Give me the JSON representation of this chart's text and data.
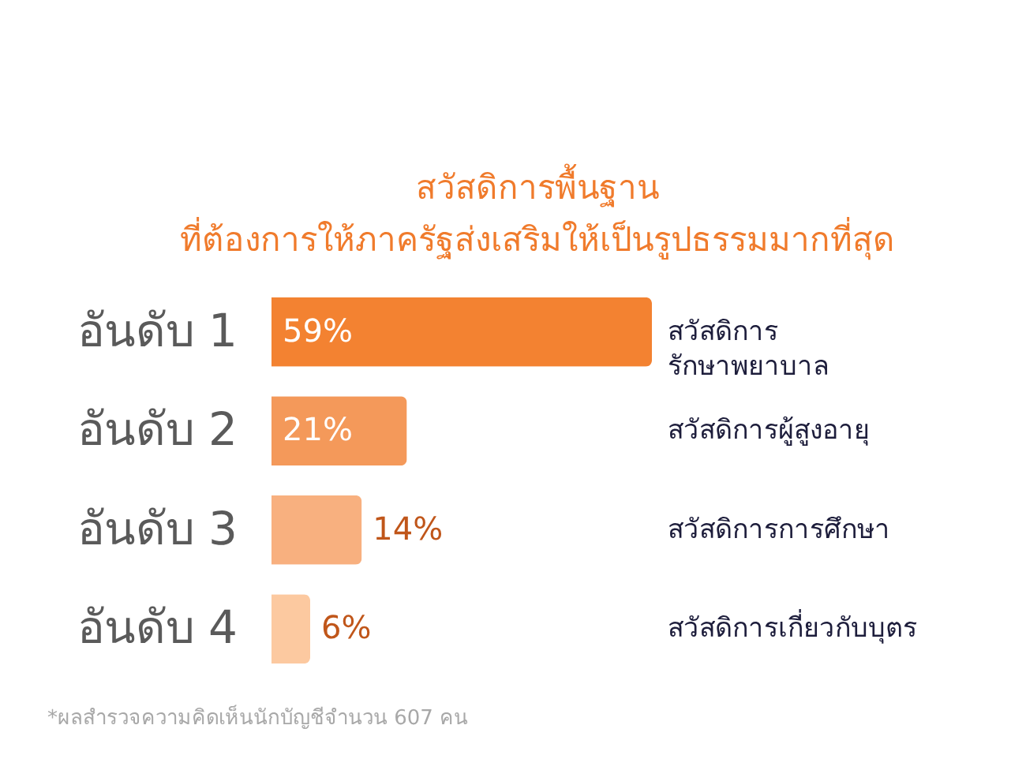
{
  "chart_data": {
    "type": "bar",
    "orientation": "horizontal",
    "title": "สวัสดิการพื้นฐาน",
    "subtitle": "ที่ต้องการให้ภาครัฐส่งเสริมให้เป็นรูปธรรมมากที่สุด",
    "categories": [
      "อันดับ 1",
      "อันดับ 2",
      "อันดับ 3",
      "อันดับ 4"
    ],
    "y2_categories": [
      "สวัสดิการ\nรักษาพยาบาล",
      "สวัสดิการผู้สูงอายุ",
      "สวัสดิการการศึกษา",
      "สวัสดิการเกี่ยวกับบุตร"
    ],
    "values": [
      59,
      21,
      14,
      6
    ],
    "value_labels": [
      "59%",
      "21%",
      "14%",
      "6%"
    ],
    "colors": [
      "#f38231",
      "#f4995a",
      "#f8b07f",
      "#fcc9a0"
    ],
    "annotations": [
      "*ผลสำรวจความคิดเห็นนักบัญชีจำนวน 607 คน"
    ]
  }
}
